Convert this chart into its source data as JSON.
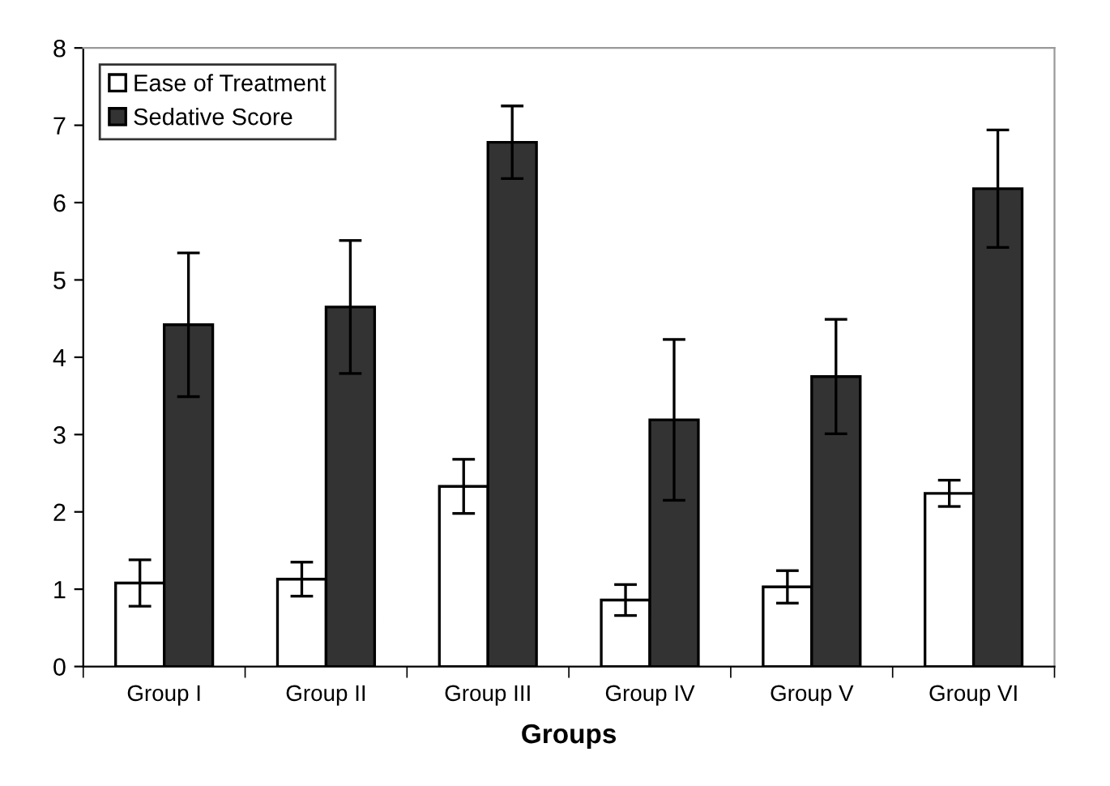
{
  "chart_data": {
    "type": "bar",
    "xlabel": "Groups",
    "categories": [
      "Group I",
      "Group II",
      "Group III",
      "Group IV",
      "Group V",
      "Group VI"
    ],
    "series": [
      {
        "name": "Ease of Treatment",
        "color": "#ffffff",
        "values": [
          1.08,
          1.13,
          2.33,
          0.86,
          1.03,
          2.24
        ],
        "errors": [
          0.3,
          0.22,
          0.35,
          0.2,
          0.21,
          0.17
        ]
      },
      {
        "name": "Sedative Score",
        "color": "#333333",
        "values": [
          4.42,
          4.65,
          6.78,
          3.19,
          3.75,
          6.18
        ],
        "errors": [
          0.93,
          0.86,
          0.47,
          1.04,
          0.74,
          0.76
        ]
      }
    ],
    "ylim": [
      0,
      8
    ],
    "yticks": [
      0,
      1,
      2,
      3,
      4,
      5,
      6,
      7,
      8
    ],
    "grid": false,
    "legend": "top left"
  }
}
